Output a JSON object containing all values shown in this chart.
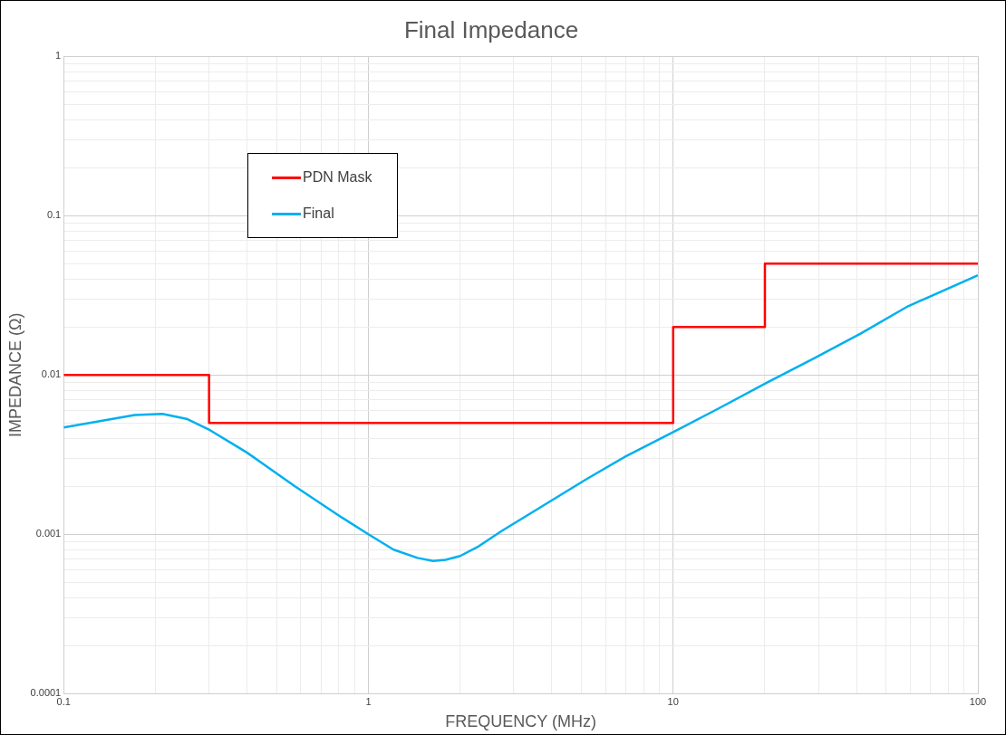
{
  "chart_data": {
    "type": "line",
    "title": "Final Impedance",
    "xlabel": "FREQUENCY (MHz)",
    "ylabel": "IMPEDANCE (Ω)",
    "log": "xy",
    "grid": true,
    "legend": "top left",
    "marker": "none",
    "line_style": "solid",
    "xlim": [
      0.1,
      100
    ],
    "ylim": [
      0.0001,
      1
    ],
    "xticks": [
      0.1,
      {
        "value": 0.2,
        "label": null
      },
      {
        "value": 0.3,
        "label": null
      },
      {
        "value": 0.4,
        "label": null
      },
      {
        "value": 0.5,
        "label": null
      },
      {
        "value": 0.6,
        "label": null
      },
      {
        "value": 0.7,
        "label": null
      },
      {
        "value": 0.8,
        "label": null
      },
      {
        "value": 0.9,
        "label": null
      },
      1,
      {
        "value": 2,
        "label": null
      },
      {
        "value": 3,
        "label": null
      },
      {
        "value": 4,
        "label": null
      },
      {
        "value": 5,
        "label": null
      },
      {
        "value": 6,
        "label": null
      },
      {
        "value": 7,
        "label": null
      },
      {
        "value": 8,
        "label": null
      },
      {
        "value": 9,
        "label": null
      },
      10,
      {
        "value": 20,
        "label": null
      },
      {
        "value": 30,
        "label": null
      },
      {
        "value": 40,
        "label": null
      },
      {
        "value": 50,
        "label": null
      },
      {
        "value": 60,
        "label": null
      },
      {
        "value": 70,
        "label": null
      },
      {
        "value": 80,
        "label": null
      },
      {
        "value": 90,
        "label": null
      },
      100
    ],
    "yticks": [
      0.0001,
      {
        "value": 0.0002,
        "label": null
      },
      {
        "value": 0.0003,
        "label": null
      },
      {
        "value": 0.0004,
        "label": null
      },
      {
        "value": 0.0005,
        "label": null
      },
      {
        "value": 0.0006,
        "label": null
      },
      {
        "value": 0.0007,
        "label": null
      },
      {
        "value": 0.0008,
        "label": null
      },
      {
        "value": 0.0009,
        "label": null
      },
      0.001,
      {
        "value": 0.002,
        "label": null
      },
      {
        "value": 0.003,
        "label": null
      },
      {
        "value": 0.004,
        "label": null
      },
      {
        "value": 0.005,
        "label": null
      },
      {
        "value": 0.006,
        "label": null
      },
      {
        "value": 0.007,
        "label": null
      },
      {
        "value": 0.008,
        "label": null
      },
      {
        "value": 0.009,
        "label": null
      },
      0.01,
      {
        "value": 0.02,
        "label": null
      },
      {
        "value": 0.03,
        "label": null
      },
      {
        "value": 0.04,
        "label": null
      },
      {
        "value": 0.05,
        "label": null
      },
      {
        "value": 0.06,
        "label": null
      },
      {
        "value": 0.07,
        "label": null
      },
      {
        "value": 0.08,
        "label": null
      },
      {
        "value": 0.09,
        "label": null
      },
      0.1,
      {
        "value": 0.2,
        "label": null
      },
      {
        "value": 0.3,
        "label": null
      },
      {
        "value": 0.4,
        "label": null
      },
      {
        "value": 0.5,
        "label": null
      },
      {
        "value": 0.6,
        "label": null
      },
      {
        "value": 0.7,
        "label": null
      },
      {
        "value": 0.8,
        "label": null
      },
      {
        "value": 0.9,
        "label": null
      },
      1
    ],
    "series": [
      {
        "name": "PDN Mask",
        "type": "step",
        "color": "#ff0000",
        "x": [
          0.1,
          0.3,
          10,
          20,
          100
        ],
        "values": [
          0.01,
          0.005,
          0.02,
          0.05,
          0.05
        ]
      },
      {
        "name": "Final",
        "type": "line",
        "color": "#00b0f0",
        "x": [
          0.1,
          0.171,
          0.211,
          0.253,
          0.302,
          0.4,
          0.574,
          0.82,
          1.0,
          1.21,
          1.45,
          1.63,
          1.79,
          2.0,
          2.3,
          2.74,
          3.4,
          5.2,
          6.9,
          9.9,
          14.1,
          20.2,
          28.9,
          41.3,
          59,
          100
        ],
        "values": [
          0.00468,
          0.0056,
          0.0057,
          0.0053,
          0.0045,
          0.00325,
          0.002,
          0.00127,
          0.001,
          0.0008,
          0.00071,
          0.00068,
          0.00069,
          0.00073,
          0.00084,
          0.00105,
          0.00135,
          0.00222,
          0.00304,
          0.00433,
          0.00616,
          0.0089,
          0.01266,
          0.0182,
          0.027,
          0.0422
        ]
      }
    ]
  }
}
